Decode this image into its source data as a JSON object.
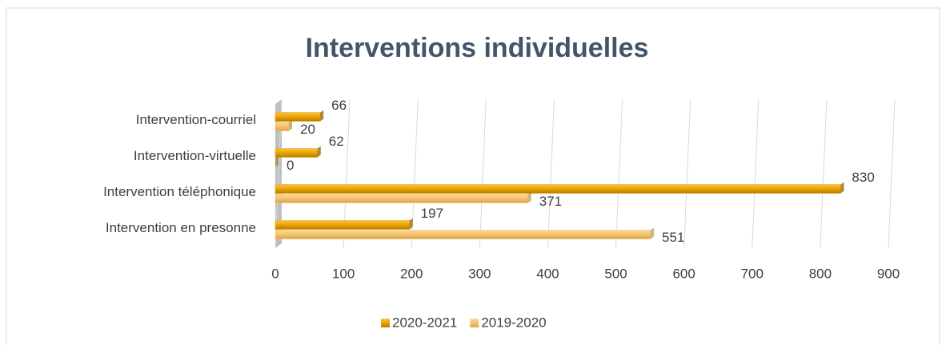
{
  "chart_data": {
    "type": "bar",
    "orientation": "horizontal",
    "title": "Interventions individuelles",
    "categories": [
      "Intervention-courriel",
      "Intervention-virtuelle",
      "Intervention téléphonique",
      "Intervention en presonne"
    ],
    "series": [
      {
        "name": "2020-2021",
        "color": "#E8A202",
        "values": [
          66,
          62,
          830,
          197
        ]
      },
      {
        "name": "2019-2020",
        "color": "#F5C36E",
        "values": [
          20,
          0,
          371,
          551
        ]
      }
    ],
    "xlim": [
      0,
      900
    ],
    "xticks": [
      0,
      100,
      200,
      300,
      400,
      500,
      600,
      700,
      800,
      900
    ],
    "grid": true,
    "legend": "bottom"
  }
}
